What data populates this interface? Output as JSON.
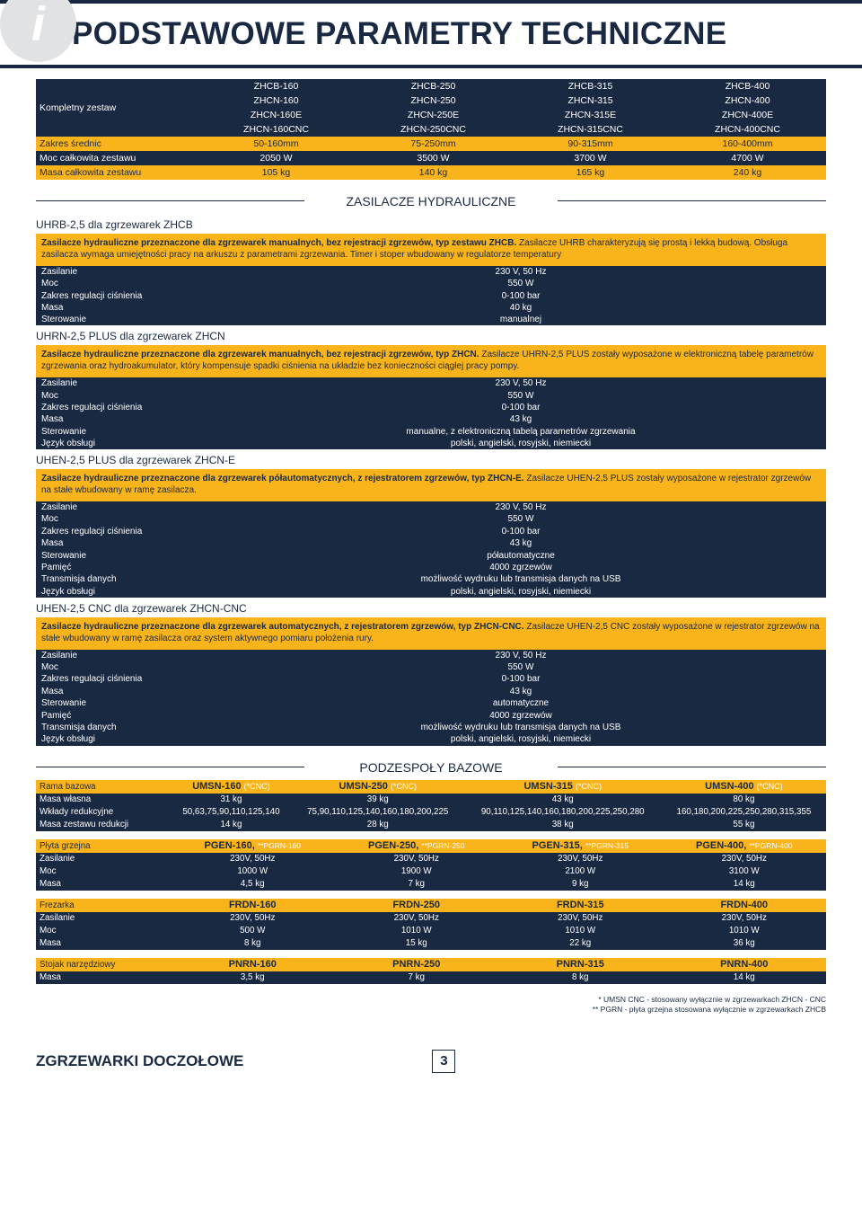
{
  "title": "PODSTAWOWE PARAMETRY TECHNICZNE",
  "top": {
    "rows": [
      {
        "label": "Kompletny zestaw",
        "cls": "dark-row",
        "vals": [
          "ZHCB-160\nZHCN-160\nZHCN-160E\nZHCN-160CNC",
          "ZHCB-250\nZHCN-250\nZHCN-250E\nZHCN-250CNC",
          "ZHCB-315\nZHCN-315\nZHCN-315E\nZHCN-315CNC",
          "ZHCB-400\nZHCN-400\nZHCN-400E\nZHCN-400CNC"
        ]
      },
      {
        "label": "Zakres średnic",
        "cls": "yellow-row",
        "vals": [
          "50-160mm",
          "75-250mm",
          "90-315mm",
          "160-400mm"
        ]
      },
      {
        "label": "Moc całkowita zestawu",
        "cls": "dark-row",
        "vals": [
          "2050 W",
          "3500 W",
          "3700 W",
          "4700 W"
        ]
      },
      {
        "label": "Masa całkowita zestawu",
        "cls": "yellow-row",
        "vals": [
          "105 kg",
          "140 kg",
          "165 kg",
          "240 kg"
        ]
      }
    ]
  },
  "sec_hydraulic": "ZASILACZE HYDRAULICZNE",
  "units": [
    {
      "heading": "UHRB-2,5 dla zgrzewarek ZHCB",
      "desc_bold": "Zasilacze hydrauliczne przeznaczone dla zgrzewarek manualnych, bez rejestracji zgrzewów, typ zestawu ZHCB.",
      "desc_rest": " Zasilacze UHRB charakteryzują się prostą i lekką budową. Obsługa zasilacza wymaga umiejętności pracy na arkuszu z parametrami zgrzewania. Timer i stoper wbudowany w regulatorze temperatury",
      "specs": [
        [
          "Zasilanie",
          "230 V, 50 Hz"
        ],
        [
          "Moc",
          "550 W"
        ],
        [
          "Zakres regulacji ciśnienia",
          "0-100 bar"
        ],
        [
          "Masa",
          "40 kg"
        ],
        [
          "Sterowanie",
          "manualnej"
        ]
      ]
    },
    {
      "heading": "UHRN-2,5 PLUS dla zgrzewarek ZHCN",
      "desc_bold": "Zasilacze hydrauliczne przeznaczone dla zgrzewarek manualnych, bez rejestracji zgrzewów, typ ZHCN.",
      "desc_rest": " Zasilacze UHRN-2,5 PLUS zostały wyposażone w elektroniczną tabelę parametrów zgrzewania oraz hydroakumulator, który kompensuje spadki ciśnienia na układzie bez konieczności ciągłej pracy pompy.",
      "specs": [
        [
          "Zasilanie",
          "230 V, 50 Hz"
        ],
        [
          "Moc",
          "550 W"
        ],
        [
          "Zakres regulacji ciśnienia",
          "0-100 bar"
        ],
        [
          "Masa",
          "43 kg"
        ],
        [
          "Sterowanie",
          "manualne, z elektroniczną tabelą parametrów zgrzewania"
        ],
        [
          "Język obsługi",
          "polski, angielski, rosyjski, niemiecki"
        ]
      ]
    },
    {
      "heading": "UHEN-2,5 PLUS dla zgrzewarek ZHCN-E",
      "desc_bold": "Zasilacze hydrauliczne przeznaczone dla zgrzewarek półautomatycznych, z rejestratorem zgrzewów, typ ZHCN-E.",
      "desc_rest": " Zasilacze UHEN-2,5 PLUS zostały wyposażone w rejestrator zgrzewów na stałe wbudowany w ramę zasilacza.",
      "specs": [
        [
          "Zasilanie",
          "230 V, 50 Hz"
        ],
        [
          "Moc",
          "550 W"
        ],
        [
          "Zakres regulacji ciśnienia",
          "0-100 bar"
        ],
        [
          "Masa",
          "43 kg"
        ],
        [
          "Sterowanie",
          "półautomatyczne"
        ],
        [
          "Pamięć",
          "4000 zgrzewów"
        ],
        [
          "Transmisja danych",
          "możliwość wydruku lub transmisja danych na USB"
        ],
        [
          "Język obsługi",
          "polski, angielski, rosyjski, niemiecki"
        ]
      ]
    },
    {
      "heading": "UHEN-2,5 CNC dla zgrzewarek ZHCN-CNC",
      "desc_bold": "Zasilacze hydrauliczne przeznaczone dla zgrzewarek automatycznych, z rejestratorem zgrzewów, typ ZHCN-CNC.",
      "desc_rest": " Zasilacze UHEN-2,5 CNC zostały wyposażone w rejestrator zgrzewów na stałe wbudowany w ramę zasilacza oraz system aktywnego pomiaru położenia rury.",
      "specs": [
        [
          "Zasilanie",
          "230 V, 50 Hz"
        ],
        [
          "Moc",
          "550 W"
        ],
        [
          "Zakres regulacji ciśnienia",
          "0-100 bar"
        ],
        [
          "Masa",
          "43 kg"
        ],
        [
          "Sterowanie",
          "automatyczne"
        ],
        [
          "Pamięć",
          "4000 zgrzewów"
        ],
        [
          "Transmisja danych",
          "możliwość wydruku lub transmisja danych na USB"
        ],
        [
          "Język obsługi",
          "polski, angielski, rosyjski, niemiecki"
        ]
      ]
    }
  ],
  "sec_base": "PODZESPOŁY BAZOWE",
  "base": [
    {
      "label": "Rama bazowa",
      "models": [
        "UMSN-160",
        "UMSN-250",
        "UMSN-315",
        "UMSN-400"
      ],
      "suffix": "(*CNC)",
      "rows": [
        [
          "Masa własna",
          "31 kg",
          "39 kg",
          "43 kg",
          "80 kg"
        ],
        [
          "Wkłady redukcyjne",
          "50,63,75,90,110,125,140",
          "75,90,110,125,140,160,180,200,225",
          "90,110,125,140,160,180,200,225,250,280",
          "160,180,200,225,250,280,315,355"
        ],
        [
          "Masa zestawu redukcji",
          "14 kg",
          "28 kg",
          "38 kg",
          "55 kg"
        ]
      ]
    },
    {
      "label": "Płyta grzejna",
      "models": [
        "PGEN-160,",
        "PGEN-250,",
        "PGEN-315,",
        "PGEN-400,"
      ],
      "suffix2": [
        "**PGRN-160",
        "**PGRN-250",
        "**PGRN-315",
        "**PGRN-400"
      ],
      "rows": [
        [
          "Zasilanie",
          "230V, 50Hz",
          "230V, 50Hz",
          "230V, 50Hz",
          "230V, 50Hz"
        ],
        [
          "Moc",
          "1000 W",
          "1900 W",
          "2100 W",
          "3100 W"
        ],
        [
          "Masa",
          "4,5 kg",
          "7 kg",
          "9 kg",
          "14 kg"
        ]
      ]
    },
    {
      "label": "Frezarka",
      "models": [
        "FRDN-160",
        "FRDN-250",
        "FRDN-315",
        "FRDN-400"
      ],
      "rows": [
        [
          "Zasilanie",
          "230V, 50Hz",
          "230V, 50Hz",
          "230V, 50Hz",
          "230V, 50Hz"
        ],
        [
          "Moc",
          "500 W",
          "1010 W",
          "1010 W",
          "1010 W"
        ],
        [
          "Masa",
          "8 kg",
          "15 kg",
          "22 kg",
          "36 kg"
        ]
      ]
    },
    {
      "label": "Stojak narzędziowy",
      "models": [
        "PNRN-160",
        "PNRN-250",
        "PNRN-315",
        "PNRN-400"
      ],
      "rows": [
        [
          "Masa",
          "3,5 kg",
          "7 kg",
          "8 kg",
          "14 kg"
        ]
      ]
    }
  ],
  "footnotes": [
    "* UMSN CNC - stosowany wyłącznie w zgrzewarkach ZHCN - CNC",
    "** PGRN - płyta grzejna stosowana wyłącznie w zgrzewarkach ZHCB"
  ],
  "footer_title": "ZGRZEWARKI DOCZOŁOWE",
  "page": "3"
}
